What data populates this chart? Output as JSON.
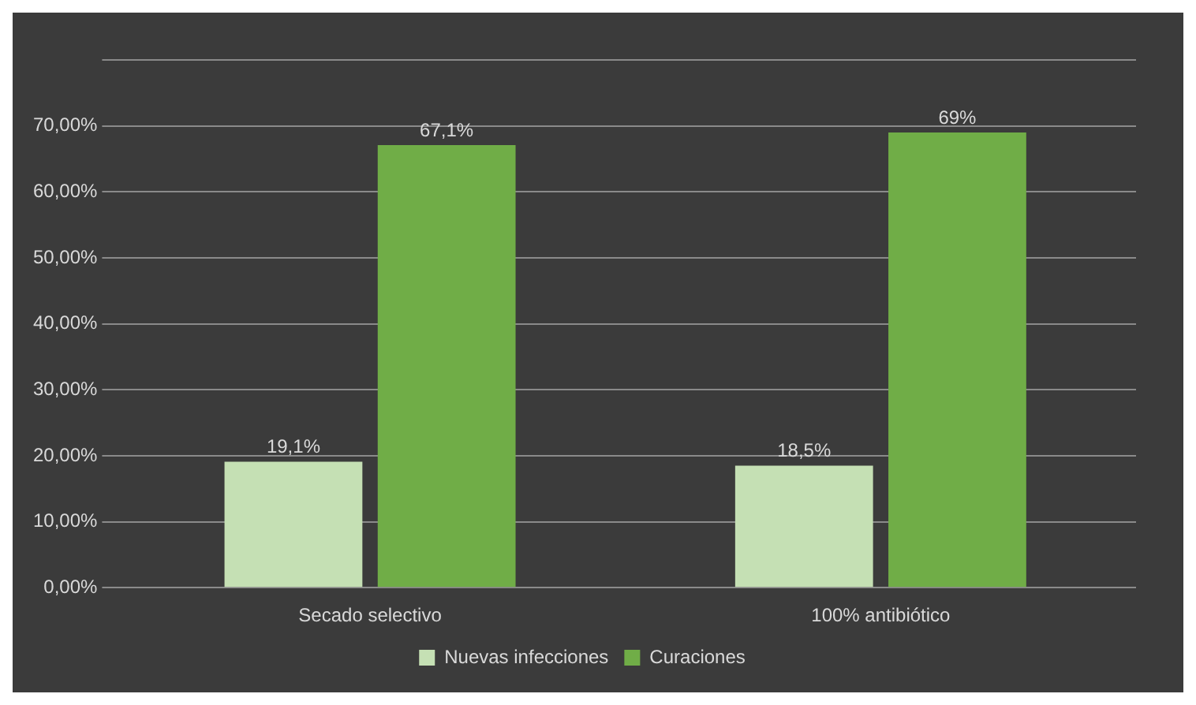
{
  "chart_data": {
    "type": "bar",
    "categories": [
      "Secado selectivo",
      "100% antibiótico"
    ],
    "series": [
      {
        "name": "Nuevas infecciones",
        "color": "#c5e0b4",
        "values": [
          19.1,
          18.5
        ],
        "value_labels": [
          "19,1%",
          "18,5%"
        ]
      },
      {
        "name": "Curaciones",
        "color": "#70ad47",
        "values": [
          67.1,
          69
        ],
        "value_labels": [
          "67,1%",
          "69%"
        ]
      }
    ],
    "ylim": [
      0,
      80
    ],
    "yticks": [
      {
        "value": 0,
        "label": "0,00%"
      },
      {
        "value": 10,
        "label": "10,00%"
      },
      {
        "value": 20,
        "label": "20,00%"
      },
      {
        "value": 30,
        "label": "30,00%"
      },
      {
        "value": 40,
        "label": "40,00%"
      },
      {
        "value": 50,
        "label": "50,00%"
      },
      {
        "value": 60,
        "label": "60,00%"
      },
      {
        "value": 70,
        "label": "70,00%"
      },
      {
        "value": 80,
        "label": null
      }
    ],
    "grid": "y",
    "legend": "bottom"
  }
}
